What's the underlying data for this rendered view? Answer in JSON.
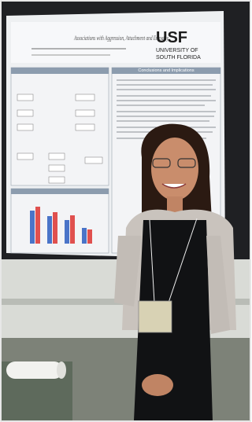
{
  "poster": {
    "logo": "USF",
    "university_line1": "UNIVERSITY OF",
    "university_line2": "SOUTH FLORIDA",
    "title": "Associations with Aggression, Attachment and Empathy",
    "section_heading": "Conclusions and Implications"
  }
}
